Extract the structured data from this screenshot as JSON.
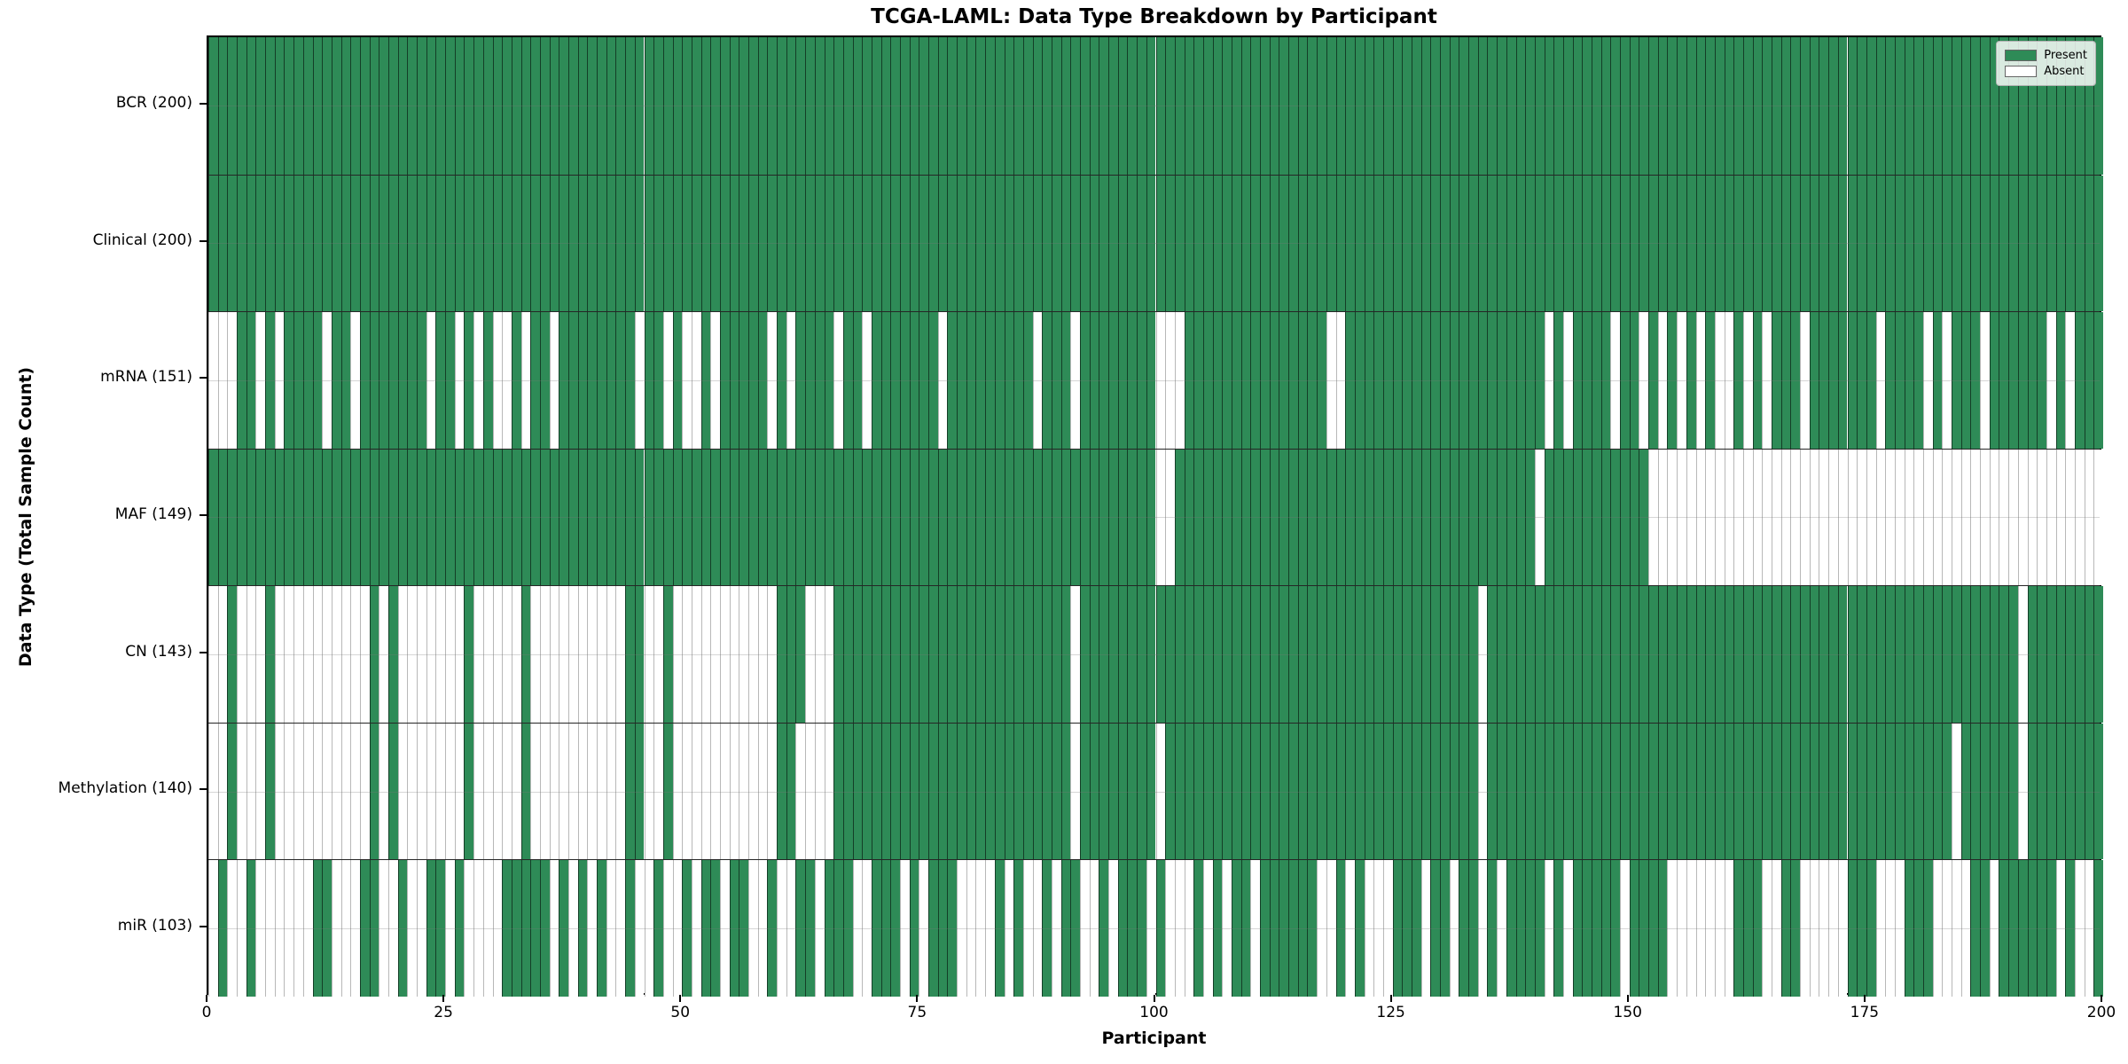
{
  "chart_data": {
    "type": "heatmap",
    "title": "TCGA-LAML: Data Type Breakdown by Participant",
    "xlabel": "Participant",
    "ylabel": "Data Type (Total Sample Count)",
    "n_participants": 200,
    "x_ticks": [
      0,
      25,
      50,
      75,
      100,
      125,
      150,
      175,
      200
    ],
    "x_range": [
      0,
      200
    ],
    "grid": "faint horizontal line at each row center",
    "legend": {
      "position": "upper right",
      "entries": [
        {
          "label": "Present",
          "color": "#2e8b57"
        },
        {
          "label": "Absent",
          "color": "#ffffff"
        }
      ]
    },
    "colors": {
      "present": "#2e8b57",
      "absent": "#ffffff",
      "cell_edge_on_present": "rgba(0,0,0,0.55)",
      "cell_edge_on_absent": "rgba(0,0,0,0.28)",
      "row_divider": "rgba(0,0,0,0.85)",
      "plot_border": "#000000"
    },
    "rows": [
      {
        "label": "BCR (200)",
        "data_type": "BCR",
        "present_count": 200,
        "absent_participants": []
      },
      {
        "label": "Clinical (200)",
        "data_type": "Clinical",
        "present_count": 200,
        "absent_participants": []
      },
      {
        "label": "mRNA (151)",
        "data_type": "mRNA",
        "present_count": 151,
        "absent_participants": [
          0,
          1,
          2,
          5,
          7,
          12,
          15,
          23,
          26,
          28,
          30,
          31,
          33,
          36,
          45,
          48,
          50,
          51,
          53,
          59,
          61,
          66,
          69,
          77,
          87,
          91,
          100,
          101,
          102,
          118,
          119,
          141,
          143,
          148,
          151,
          153,
          155,
          157,
          159,
          160,
          162,
          164,
          168,
          176,
          181,
          183,
          187,
          194,
          196
        ]
      },
      {
        "label": "MAF (149)",
        "data_type": "MAF",
        "present_count": 149,
        "absent_participants": [
          100,
          101,
          140,
          152,
          153,
          154,
          155,
          156,
          157,
          158,
          159,
          160,
          161,
          162,
          163,
          164,
          165,
          166,
          167,
          168,
          169,
          170,
          171,
          172,
          173,
          174,
          175,
          176,
          177,
          178,
          179,
          180,
          181,
          182,
          183,
          184,
          185,
          186,
          187,
          188,
          189,
          190,
          191,
          192,
          193,
          194,
          195,
          196,
          197,
          198,
          199
        ]
      },
      {
        "label": "CN (143)",
        "data_type": "CN",
        "present_count": 143,
        "absent_participants": [
          0,
          1,
          3,
          4,
          5,
          7,
          8,
          9,
          10,
          11,
          12,
          13,
          14,
          15,
          16,
          18,
          20,
          21,
          22,
          23,
          24,
          25,
          26,
          28,
          29,
          30,
          31,
          32,
          34,
          35,
          36,
          37,
          38,
          39,
          40,
          41,
          42,
          43,
          46,
          47,
          49,
          50,
          51,
          52,
          53,
          54,
          55,
          56,
          57,
          58,
          59,
          63,
          64,
          65,
          91,
          134,
          191
        ]
      },
      {
        "label": "Methylation (140)",
        "data_type": "Methylation",
        "present_count": 140,
        "absent_participants": [
          0,
          1,
          3,
          4,
          5,
          7,
          8,
          9,
          10,
          11,
          12,
          13,
          14,
          15,
          16,
          18,
          20,
          21,
          22,
          23,
          24,
          25,
          26,
          28,
          29,
          30,
          31,
          32,
          34,
          35,
          36,
          37,
          38,
          39,
          40,
          41,
          42,
          43,
          46,
          47,
          49,
          50,
          51,
          52,
          53,
          54,
          55,
          56,
          57,
          58,
          59,
          62,
          63,
          64,
          65,
          91,
          100,
          134,
          184,
          191
        ]
      },
      {
        "label": "miR (103)",
        "data_type": "miR",
        "present_count": 103,
        "absent_participants": [
          0,
          2,
          3,
          5,
          6,
          7,
          8,
          9,
          10,
          13,
          14,
          15,
          18,
          19,
          21,
          22,
          25,
          27,
          28,
          29,
          30,
          36,
          38,
          40,
          42,
          43,
          45,
          46,
          48,
          49,
          51,
          54,
          57,
          58,
          60,
          61,
          64,
          68,
          69,
          73,
          75,
          79,
          80,
          81,
          82,
          84,
          86,
          87,
          89,
          92,
          93,
          95,
          99,
          101,
          102,
          103,
          105,
          107,
          110,
          117,
          118,
          120,
          122,
          123,
          124,
          128,
          131,
          134,
          136,
          141,
          143,
          149,
          154,
          155,
          156,
          157,
          158,
          159,
          160,
          164,
          165,
          168,
          169,
          170,
          171,
          172,
          176,
          177,
          178,
          182,
          183,
          184,
          185,
          188,
          195,
          197,
          198
        ]
      }
    ]
  }
}
